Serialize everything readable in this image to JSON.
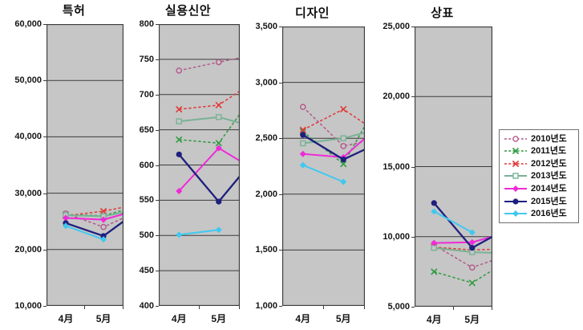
{
  "figure": {
    "background": "#ffffff",
    "plot_background": "#c6c6c6",
    "grid_color": "#3c3c3c",
    "note": "Four cropped line charts; series lines continue past the 5月 points to the right plot edge (next month cut off)."
  },
  "legend": {
    "position": "right",
    "items": [
      {
        "label": "2010년도",
        "color": "#b3598a",
        "dash": true,
        "marker": "circle-open"
      },
      {
        "label": "2011년도",
        "color": "#2f9b41",
        "dash": true,
        "marker": "x"
      },
      {
        "label": "2012년도",
        "color": "#e23838",
        "dash": true,
        "marker": "x"
      },
      {
        "label": "2013년도",
        "color": "#79b295",
        "dash": false,
        "marker": "square-open"
      },
      {
        "label": "2014년도",
        "color": "#ef2ad8",
        "dash": false,
        "marker": "diamond"
      },
      {
        "label": "2015년도",
        "color": "#1f1f7e",
        "dash": false,
        "marker": "circle"
      },
      {
        "label": "2016년도",
        "color": "#41c8ef",
        "dash": false,
        "marker": "diamond"
      }
    ]
  },
  "chart_data": [
    {
      "type": "line",
      "id": "patent",
      "title": "특허",
      "categories": [
        "4月",
        "5月"
      ],
      "ylim": [
        10000,
        60000
      ],
      "ytick_step": 10000,
      "grid": true,
      "series": [
        {
          "name": "2010년도",
          "values": [
            26400,
            24000
          ],
          "edge_value": 25600
        },
        {
          "name": "2011년도",
          "values": [
            26200,
            26000
          ],
          "edge_value": 27000
        },
        {
          "name": "2012년도",
          "values": [
            26000,
            26800
          ],
          "edge_value": 27500
        },
        {
          "name": "2013년도",
          "values": [
            26100,
            25900
          ],
          "edge_value": 26600
        },
        {
          "name": "2014년도",
          "values": [
            25600,
            25300
          ],
          "edge_value": 26300
        },
        {
          "name": "2015년도",
          "values": [
            24700,
            22400
          ],
          "edge_value": 25000
        },
        {
          "name": "2016년도",
          "values": [
            24200,
            21800
          ],
          "edge_value": null
        }
      ]
    },
    {
      "type": "line",
      "id": "utility-model",
      "title": "실용신안",
      "categories": [
        "4月",
        "5月"
      ],
      "ylim": [
        400,
        800
      ],
      "ytick_step": 50,
      "grid": true,
      "series": [
        {
          "name": "2010년도",
          "values": [
            734,
            746
          ],
          "edge_value": 752
        },
        {
          "name": "2011년도",
          "values": [
            636,
            631
          ],
          "edge_value": 672
        },
        {
          "name": "2012년도",
          "values": [
            679,
            685
          ],
          "edge_value": 705
        },
        {
          "name": "2013년도",
          "values": [
            662,
            668
          ],
          "edge_value": 660
        },
        {
          "name": "2014년도",
          "values": [
            563,
            624
          ],
          "edge_value": 606
        },
        {
          "name": "2015년도",
          "values": [
            615,
            548
          ],
          "edge_value": 584
        },
        {
          "name": "2016년도",
          "values": [
            501,
            508
          ],
          "edge_value": null
        }
      ]
    },
    {
      "type": "line",
      "id": "design",
      "title": "디자인",
      "categories": [
        "4月",
        "5月"
      ],
      "ylim": [
        1000,
        3500
      ],
      "ytick_step": 500,
      "grid": true,
      "series": [
        {
          "name": "2010년도",
          "values": [
            2780,
            2430
          ],
          "edge_value": 2470
        },
        {
          "name": "2011년도",
          "values": [
            2560,
            2270
          ],
          "edge_value": 2610
        },
        {
          "name": "2012년도",
          "values": [
            2575,
            2760
          ],
          "edge_value": 2630
        },
        {
          "name": "2013년도",
          "values": [
            2455,
            2500
          ],
          "edge_value": 2550
        },
        {
          "name": "2014년도",
          "values": [
            2360,
            2330
          ],
          "edge_value": 2500
        },
        {
          "name": "2015년도",
          "values": [
            2530,
            2310
          ],
          "edge_value": 2400
        },
        {
          "name": "2016년도",
          "values": [
            2260,
            2110
          ],
          "edge_value": null
        }
      ]
    },
    {
      "type": "line",
      "id": "trademark",
      "title": "상표",
      "categories": [
        "4月",
        "5月"
      ],
      "ylim": [
        5000,
        25000
      ],
      "ytick_step": 5000,
      "grid": true,
      "series": [
        {
          "name": "2010년도",
          "values": [
            9400,
            7800
          ],
          "edge_value": 8300
        },
        {
          "name": "2011년도",
          "values": [
            7500,
            6700
          ],
          "edge_value": 7600
        },
        {
          "name": "2012년도",
          "values": [
            9250,
            9050
          ],
          "edge_value": 9100
        },
        {
          "name": "2013년도",
          "values": [
            9200,
            8900
          ],
          "edge_value": 8850
        },
        {
          "name": "2014년도",
          "values": [
            9550,
            9600
          ],
          "edge_value": 10000
        },
        {
          "name": "2015년도",
          "values": [
            12400,
            9200
          ],
          "edge_value": 10000
        },
        {
          "name": "2016년도",
          "values": [
            11800,
            10300
          ],
          "edge_value": null
        }
      ]
    }
  ]
}
